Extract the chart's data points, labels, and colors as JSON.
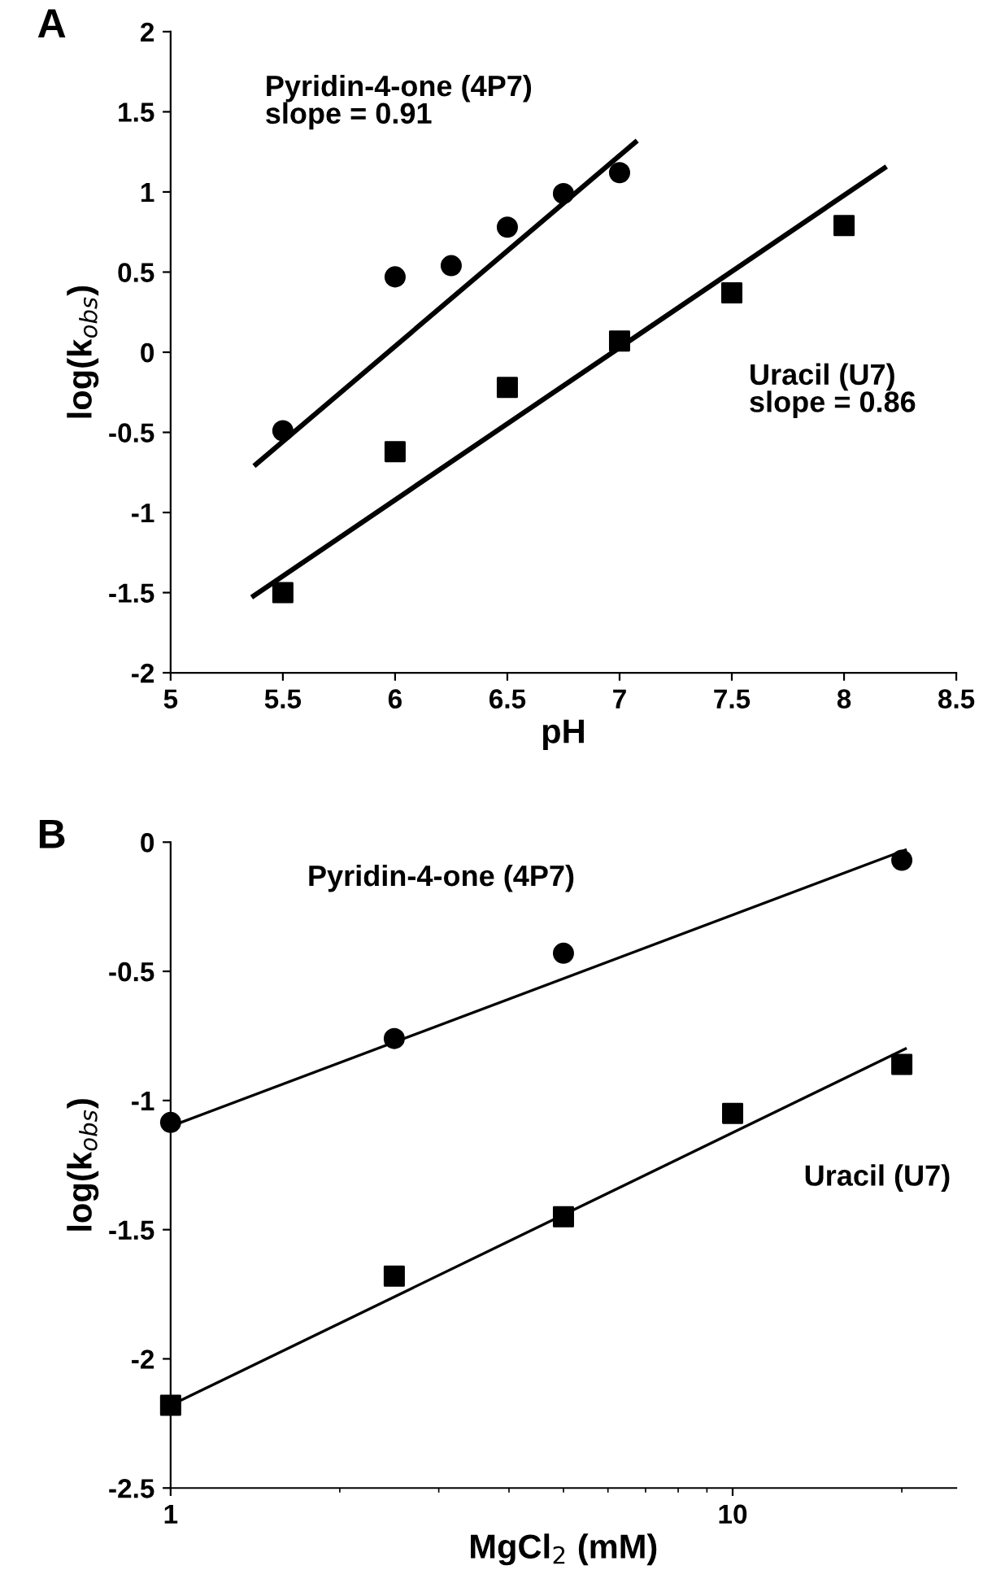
{
  "chart_data": [
    {
      "type": "scatter",
      "title": "A",
      "xlabel": "pH",
      "ylabel": "log(k$_{obs}$)",
      "xlim": [
        5,
        8.5
      ],
      "ylim": [
        -2,
        2
      ],
      "xticks": [
        5,
        5.5,
        6,
        6.5,
        7,
        7.5,
        8,
        8.5
      ],
      "yticks": [
        -2,
        -1.5,
        -1,
        -0.5,
        0,
        0.5,
        1,
        1.5,
        2
      ],
      "series": [
        {
          "marker": "circle",
          "color": "#000000",
          "x": [
            5.5,
            6,
            6.25,
            6.5,
            6.75,
            7
          ],
          "values": [
            -0.49,
            0.47,
            0.54,
            0.78,
            0.99,
            1.12
          ]
        },
        {
          "marker": "square",
          "color": "#000000",
          "x": [
            5.5,
            6,
            6.5,
            7,
            7.5,
            8
          ],
          "values": [
            -1.5,
            -0.62,
            -0.22,
            0.07,
            0.37,
            0.79
          ]
        },
        {
          "type": "line",
          "color": "#000000",
          "x": [
            5.38,
            7.07
          ],
          "values": [
            -0.7,
            1.31
          ]
        },
        {
          "type": "line",
          "color": "#000000",
          "x": [
            5.37,
            8.18
          ],
          "values": [
            -1.52,
            1.15
          ]
        }
      ],
      "annotations": [
        "Pyridin-4-one (4P7)\nslope = 0.91",
        "Uracil (U7)\nslope = 0.86"
      ]
    },
    {
      "type": "scatter",
      "title": "B",
      "xlabel": "MgCl$_{2}$ (mM)",
      "ylabel": "log(k$_{obs}$)",
      "log": "x",
      "xlim": [
        1,
        25
      ],
      "ylim": [
        -2.5,
        0
      ],
      "xticks": [
        1,
        10
      ],
      "yticks": [
        -2.5,
        -2,
        -1.5,
        -1,
        -0.5,
        0
      ],
      "series": [
        {
          "marker": "circle",
          "color": "#000000",
          "x": [
            1,
            2.5,
            5,
            20
          ],
          "values": [
            -1.085,
            -0.76,
            -0.43,
            -0.07
          ]
        },
        {
          "marker": "square",
          "color": "#000000",
          "x": [
            1,
            2.5,
            5,
            10,
            20
          ],
          "values": [
            -2.18,
            -1.68,
            -1.45,
            -1.05,
            -0.86
          ]
        },
        {
          "type": "line",
          "color": "#000000",
          "x": [
            1,
            20.3
          ],
          "values": [
            -1.1,
            -0.03
          ]
        },
        {
          "type": "line",
          "color": "#000000",
          "x": [
            1,
            20.3
          ],
          "values": [
            -2.18,
            -0.8
          ]
        }
      ],
      "annotations": [
        "Pyridin-4-one (4P7)",
        "Uracil (U7)"
      ]
    }
  ]
}
